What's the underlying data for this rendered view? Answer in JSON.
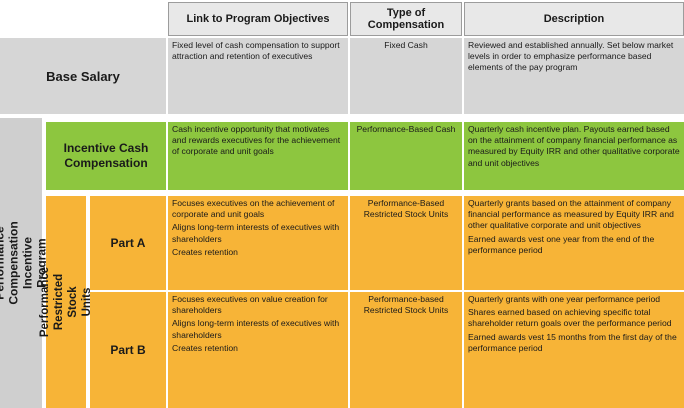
{
  "headers": {
    "link": "Link to Program Objectives",
    "type": "Type of\nCompensation",
    "description": "Description"
  },
  "base_salary": {
    "label": "Base Salary",
    "link": [
      "Fixed level of cash compensation to support attraction and retention of executives"
    ],
    "type": "Fixed Cash",
    "description": [
      "Reviewed and established annually. Set below market levels in order to emphasize performance based elements of the pay program"
    ]
  },
  "program": {
    "label": "Performance Compensation\nIncentive Program"
  },
  "incentive_cash": {
    "label": "Incentive Cash Compensation",
    "link": [
      "Cash incentive opportunity that motivates and rewards executives for the achievement of corporate and unit goals"
    ],
    "type": "Performance-Based Cash",
    "description": [
      "Quarterly cash incentive plan. Payouts earned based on the attainment of company financial performance as measured by Equity IRR and other qualitative corporate and unit objectives"
    ]
  },
  "psu": {
    "label": "Performance Restricted Stock\nUnits"
  },
  "part_a": {
    "label": "Part A",
    "link": [
      "Focuses executives on the achievement of corporate and unit goals",
      "Aligns long-term interests of executives with shareholders",
      "Creates retention"
    ],
    "type": "Performance-Based Restricted Stock Units",
    "description": [
      "Quarterly grants based on the attainment of company financial performance as measured by Equity IRR and other qualitative corporate and unit objectives",
      "Earned awards vest one year from the end of the performance period"
    ]
  },
  "part_b": {
    "label": "Part B",
    "link": [
      "Focuses executives on value creation for shareholders",
      "Aligns long-term interests of executives with shareholders",
      "Creates retention"
    ],
    "type": "Performance-based Restricted Stock Units",
    "description": [
      "Quarterly grants with one year performance period",
      "Shares earned based on achieving specific total shareholder return goals over the performance period",
      "Earned awards vest 15 months from the first day of the performance period"
    ]
  },
  "colors": {
    "gray": "#d6d6d6",
    "green": "#8dc63f",
    "orange": "#f7b437",
    "header": "#e8e8e8"
  }
}
